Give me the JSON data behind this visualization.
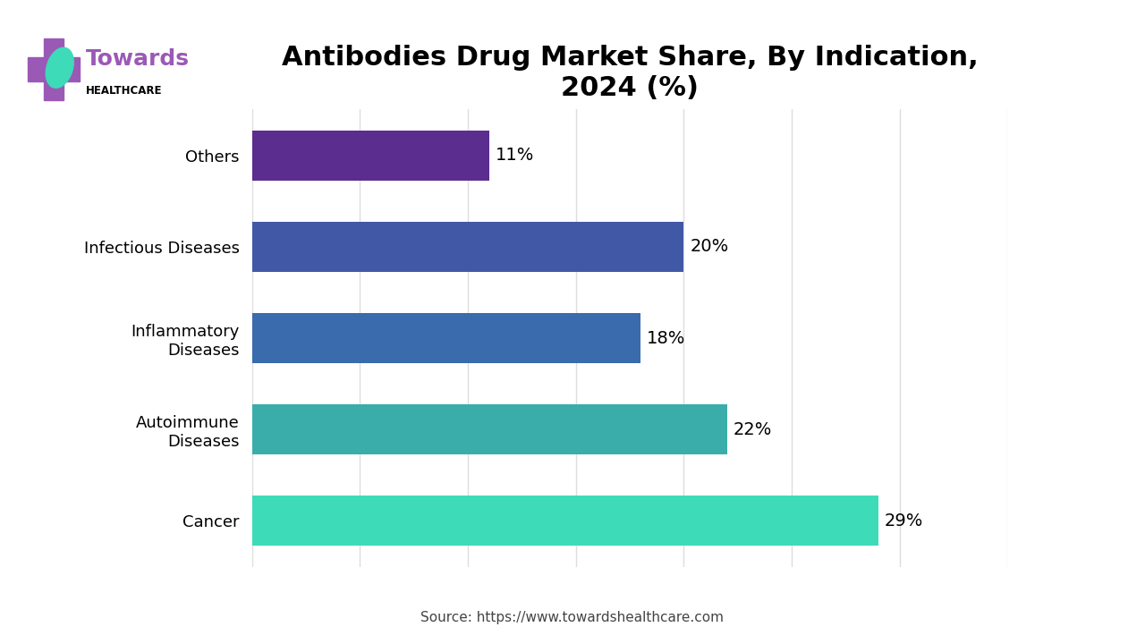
{
  "title": "Antibodies Drug Market Share, By Indication,\n2024 (%)",
  "categories": [
    "Cancer",
    "Autoimmune\nDiseases",
    "Inflammatory\nDiseases",
    "Infectious Diseases",
    "Others"
  ],
  "values": [
    29,
    22,
    18,
    20,
    11
  ],
  "bar_colors": [
    "#3DDBB8",
    "#3AADAA",
    "#3A6BAC",
    "#4158A6",
    "#5B2D8E"
  ],
  "label_texts": [
    "29%",
    "22%",
    "18%",
    "20%",
    "11%"
  ],
  "source_text": "Source: https://www.towardshealthcare.com",
  "title_fontsize": 22,
  "label_fontsize": 14,
  "category_fontsize": 13,
  "xlim": [
    0,
    35
  ],
  "background_color": "#ffffff",
  "grid_color": "#dddddd",
  "accent_line1_color": "#5B2D8E",
  "accent_line2_color": "#3DDBB8",
  "logo_towards_color": "#9B59B6",
  "logo_cross_color": "#9B59B6",
  "logo_leaf_color": "#3DDBB8"
}
